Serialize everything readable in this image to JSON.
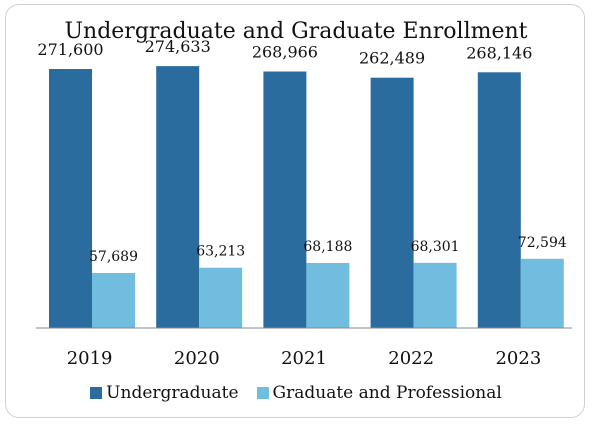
{
  "chart_data": {
    "type": "bar",
    "title": "Undergraduate and Graduate Enrollment",
    "categories": [
      "2019",
      "2020",
      "2021",
      "2022",
      "2023"
    ],
    "series": [
      {
        "name": "Undergraduate",
        "color": "#2b6c9e",
        "values": [
          271600,
          274633,
          268966,
          262489,
          268146
        ],
        "labels": [
          "271,600",
          "274,633",
          "268,966",
          "262,489",
          "268,146"
        ]
      },
      {
        "name": "Graduate and Professional",
        "color": "#70bde0",
        "values": [
          57689,
          63213,
          68188,
          68301,
          72594
        ],
        "labels": [
          "57,689",
          "63,213",
          "68,188",
          "68,301",
          "72,594"
        ]
      }
    ],
    "ylim": [
      0,
      280000
    ],
    "grid": false,
    "legend": "bottom"
  }
}
